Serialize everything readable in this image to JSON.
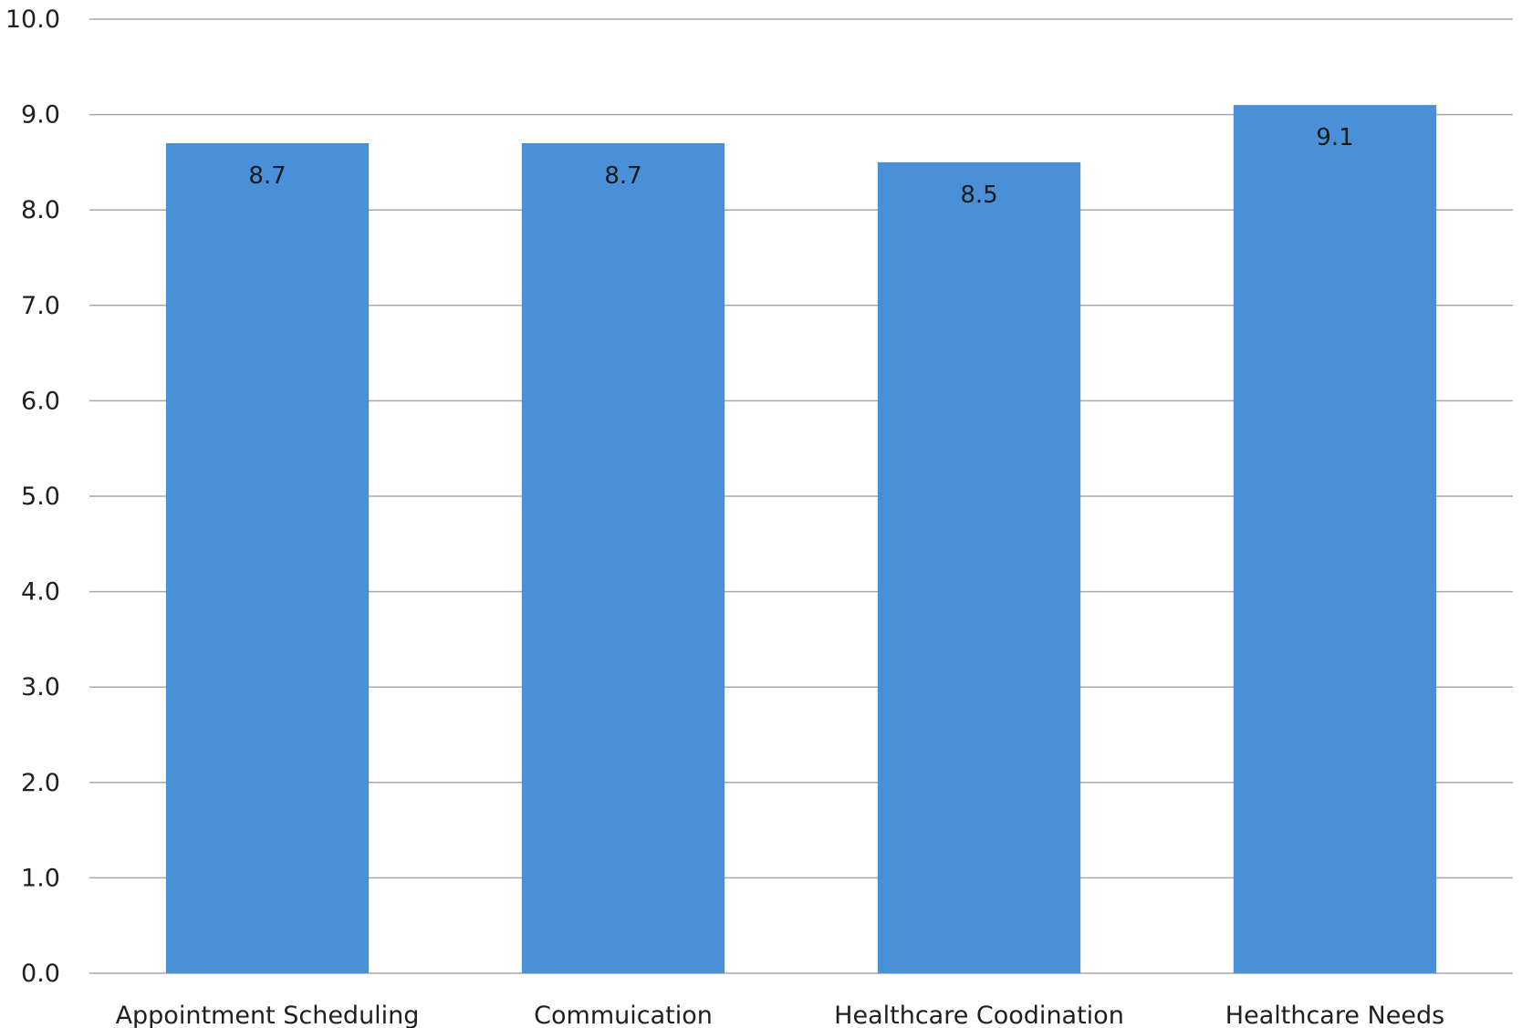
{
  "chart_data": {
    "type": "bar",
    "title": "",
    "xlabel": "",
    "ylabel": "",
    "categories": [
      "Appointment Scheduling",
      "Commuication",
      "Healthcare Coodination",
      "Healthcare Needs"
    ],
    "values": [
      8.7,
      8.7,
      8.5,
      9.1
    ],
    "data_labels": [
      "8.7",
      "8.7",
      "8.5",
      "9.1"
    ],
    "ylim": [
      0,
      10
    ],
    "yticks": [
      "0.0",
      "1.0",
      "2.0",
      "3.0",
      "4.0",
      "5.0",
      "6.0",
      "7.0",
      "8.0",
      "9.0",
      "10.0"
    ],
    "grid": true,
    "legend": "none",
    "bar_color": "#4a90d9"
  }
}
